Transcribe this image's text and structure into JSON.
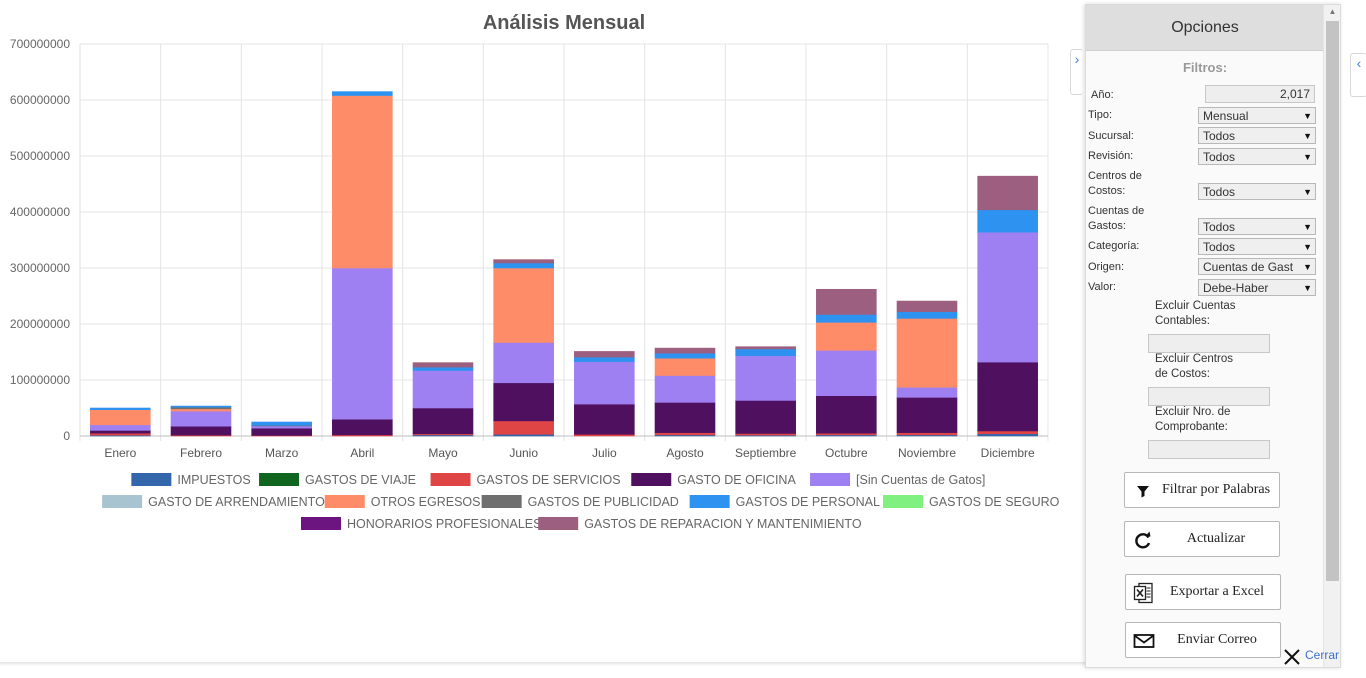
{
  "chart_data": {
    "type": "bar",
    "stacked": true,
    "title": "Análisis Mensual",
    "xlabel": "",
    "ylabel": "",
    "ylim": [
      0,
      700000000
    ],
    "yticks": [
      0,
      100000000,
      200000000,
      300000000,
      400000000,
      500000000,
      600000000,
      700000000
    ],
    "ytick_labels": [
      "0",
      "100000000",
      "200000000",
      "300000000",
      "400000000",
      "500000000",
      "600000000",
      "700000000"
    ],
    "grid": true,
    "legend_position": "bottom",
    "categories": [
      "Enero",
      "Febrero",
      "Marzo",
      "Abril",
      "Mayo",
      "Junio",
      "Julio",
      "Agosto",
      "Septiembre",
      "Octubre",
      "Noviembre",
      "Diciembre"
    ],
    "series": [
      {
        "name": "IMPUESTOS",
        "color": "#3366aa",
        "values": [
          1500000,
          0,
          0,
          0,
          2000000,
          3000000,
          0,
          2000000,
          1500000,
          2000000,
          2000000,
          4000000
        ]
      },
      {
        "name": "GASTOS DE VIAJE",
        "color": "#11661f",
        "values": [
          0,
          0,
          0,
          0,
          0,
          0,
          0,
          0,
          0,
          0,
          0,
          0
        ]
      },
      {
        "name": "GASTOS DE SERVICIOS",
        "color": "#e04545",
        "values": [
          3500000,
          1500000,
          1000000,
          2000000,
          2000000,
          24000000,
          3000000,
          4000000,
          3000000,
          3000000,
          4000000,
          5000000
        ]
      },
      {
        "name": "GASTO DE OFICINA",
        "color": "#4f1060",
        "values": [
          5000000,
          16000000,
          13000000,
          28000000,
          46000000,
          68000000,
          54000000,
          54000000,
          59000000,
          67000000,
          63000000,
          123000000
        ]
      },
      {
        "name": "[Sin Cuentas de Gatos]",
        "color": "#9f80f2",
        "values": [
          10000000,
          27000000,
          4000000,
          270000000,
          67000000,
          72000000,
          76000000,
          48000000,
          80000000,
          81000000,
          18000000,
          232000000
        ]
      },
      {
        "name": "GASTO DE ARRENDAMIENTO",
        "color": "#a8c4d0",
        "values": [
          0,
          0,
          0,
          0,
          0,
          0,
          0,
          0,
          0,
          0,
          0,
          0
        ]
      },
      {
        "name": "OTROS EGRESOS",
        "color": "#ff8c69",
        "values": [
          27000000,
          4000000,
          0,
          308000000,
          0,
          133000000,
          0,
          31000000,
          0,
          50000000,
          123000000,
          0
        ]
      },
      {
        "name": "GASTOS DE PUBLICIDAD",
        "color": "#6f6f6f",
        "values": [
          0,
          3000000,
          1000000,
          0,
          0,
          0,
          0,
          0,
          0,
          0,
          0,
          0
        ]
      },
      {
        "name": "GASTOS DE PERSONAL",
        "color": "#2e93f0",
        "values": [
          3000000,
          2000000,
          6000000,
          7000000,
          6000000,
          9000000,
          8000000,
          9000000,
          12000000,
          14000000,
          12000000,
          40000000
        ]
      },
      {
        "name": "GASTOS DE SEGURO",
        "color": "#80f080",
        "values": [
          0,
          0,
          0,
          0,
          0,
          0,
          0,
          0,
          0,
          0,
          0,
          0
        ]
      },
      {
        "name": "HONORARIOS PROFESIONALES",
        "color": "#6c1580",
        "values": [
          0,
          0,
          0,
          0,
          0,
          0,
          0,
          0,
          0,
          0,
          0,
          0
        ]
      },
      {
        "name": "GASTOS DE REPARACION Y MANTENIMIENTO",
        "color": "#9c5f80",
        "values": [
          0,
          0,
          0,
          0,
          8000000,
          6000000,
          10000000,
          9000000,
          4000000,
          45000000,
          19000000,
          60000000
        ]
      }
    ]
  },
  "panel": {
    "title": "Opciones",
    "filters_title": "Filtros:",
    "year_label": "Año:",
    "year_value": "2,017",
    "selects": [
      {
        "label": "Tipo:",
        "value": "Mensual"
      },
      {
        "label": "Sucursal:",
        "value": "Todos"
      },
      {
        "label": "Revisión:",
        "value": "Todos"
      },
      {
        "label_line1": "Centros de",
        "label_line2": "Costos:",
        "value": "Todos"
      },
      {
        "label_line1": "Cuentas de",
        "label_line2": "Gastos:",
        "value": "Todos"
      },
      {
        "label": "Categoría:",
        "value": "Todos"
      },
      {
        "label": "Origen:",
        "value": "Cuentas de Gast"
      },
      {
        "label": "Valor:",
        "value": "Debe-Haber"
      }
    ],
    "exclude": [
      {
        "line1": "Excluir Cuentas",
        "line2": "Contables:"
      },
      {
        "line1": "Excluir Centros",
        "line2": "de Costos:"
      },
      {
        "line1": "Excluir Nro. de",
        "line2": "Comprobante:"
      }
    ],
    "buttons": {
      "filter_words": "Filtrar por Palabras",
      "update": "Actualizar",
      "export_excel": "Exportar a Excel",
      "send_mail": "Enviar Correo"
    },
    "close": "Cerrar"
  }
}
